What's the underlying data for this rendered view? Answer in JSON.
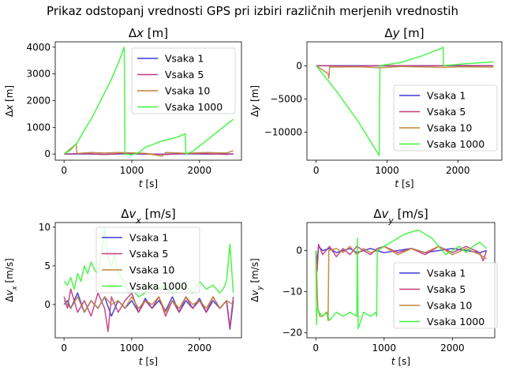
{
  "figure": {
    "suptitle": "Prikaz odstopanj vrednosti GPS pri izbiri različnih merjenih vrednostih"
  },
  "series_colors": [
    "#3a3ad6",
    "#c13a7e",
    "#c0823c",
    "#3cf53c"
  ],
  "chart_data": [
    {
      "type": "line",
      "title_base": "Δx",
      "title_sub": "",
      "title_unit": "[m]",
      "xlabel": "t",
      "xunit": "[s]",
      "ylabel_base": "Δx",
      "ylabel_sub": "",
      "ylabel_unit": "[m]",
      "xlim": [
        -130,
        2620
      ],
      "ylim": [
        -230,
        4200
      ],
      "xticks": [
        0,
        1000,
        2000
      ],
      "yticks": [
        0,
        1000,
        2000,
        3000,
        4000
      ],
      "legend": "top-right",
      "series": [
        {
          "name": "Vsaka 1",
          "x": [
            0,
            300,
            600,
            900,
            1200,
            1500,
            1800,
            2100,
            2400,
            2500
          ],
          "y": [
            0,
            5,
            -10,
            8,
            0,
            -5,
            10,
            0,
            5,
            0
          ]
        },
        {
          "name": "Vsaka 5",
          "x": [
            0,
            300,
            600,
            900,
            1200,
            1500,
            1800,
            2100,
            2400,
            2500
          ],
          "y": [
            0,
            20,
            -15,
            30,
            10,
            -20,
            25,
            15,
            -10,
            10
          ]
        },
        {
          "name": "Vsaka 10",
          "x": [
            0,
            180,
            190,
            400,
            600,
            800,
            900,
            1200,
            1450,
            1500,
            1700,
            1800,
            2100,
            2400,
            2500
          ],
          "y": [
            0,
            380,
            20,
            60,
            40,
            60,
            50,
            30,
            -80,
            60,
            40,
            30,
            60,
            40,
            130
          ]
        },
        {
          "name": "Vsaka 1000",
          "x": [
            0,
            100,
            200,
            300,
            400,
            500,
            600,
            700,
            800,
            890,
            900,
            1000,
            1100,
            1200,
            1300,
            1400,
            1500,
            1600,
            1700,
            1790,
            1800,
            1900,
            2000,
            2100,
            2200,
            2300,
            2400,
            2500
          ],
          "y": [
            0,
            150,
            450,
            900,
            1300,
            1800,
            2300,
            2800,
            3400,
            4000,
            0,
            -30,
            50,
            250,
            350,
            450,
            520,
            580,
            660,
            760,
            0,
            100,
            300,
            500,
            700,
            900,
            1100,
            1300
          ]
        }
      ]
    },
    {
      "type": "line",
      "title_base": "Δy",
      "title_sub": "",
      "title_unit": "[m]",
      "xlabel": "t",
      "xunit": "[s]",
      "ylabel_base": "Δy",
      "ylabel_sub": "",
      "ylabel_unit": "[m]",
      "xlim": [
        -130,
        2620
      ],
      "ylim": [
        -14200,
        3600
      ],
      "xticks": [
        0,
        1000,
        2000
      ],
      "yticks": [
        -10000,
        -5000,
        0
      ],
      "legend": "bottom-right",
      "series": [
        {
          "name": "Vsaka 1",
          "x": [
            0,
            500,
            1000,
            1500,
            2000,
            2500
          ],
          "y": [
            0,
            10,
            -10,
            5,
            0,
            10
          ]
        },
        {
          "name": "Vsaka 5",
          "x": [
            0,
            500,
            1000,
            1500,
            2000,
            2500
          ],
          "y": [
            0,
            -50,
            30,
            -20,
            40,
            0
          ]
        },
        {
          "name": "Vsaka 10",
          "x": [
            0,
            170,
            180,
            190,
            600,
            900,
            1200,
            1800,
            2100,
            2500
          ],
          "y": [
            0,
            -1200,
            -1900,
            -200,
            -150,
            -300,
            -100,
            -250,
            -150,
            -200
          ]
        },
        {
          "name": "Vsaka 1000",
          "x": [
            0,
            300,
            600,
            890,
            900,
            1200,
            1500,
            1780,
            1790,
            1800,
            2100,
            2400,
            2500
          ],
          "y": [
            0,
            -4000,
            -8500,
            -13500,
            0,
            500,
            1500,
            2700,
            2800,
            0,
            300,
            500,
            600
          ]
        }
      ]
    },
    {
      "type": "line",
      "title_base": "Δv",
      "title_sub": "x",
      "title_unit": "[m/s]",
      "xlabel": "t",
      "xunit": "[s]",
      "ylabel_base": "Δv",
      "ylabel_sub": "x",
      "ylabel_unit": "[m/s]",
      "xlim": [
        -130,
        2620
      ],
      "ylim": [
        -4.3,
        10.6
      ],
      "xticks": [
        0,
        1000,
        2000
      ],
      "yticks": [
        0,
        5,
        10
      ],
      "legend": "top-center",
      "series": [
        {
          "name": "Vsaka 1",
          "x": [
            0,
            50,
            100,
            200,
            300,
            400,
            500,
            600,
            700,
            800,
            900,
            1000,
            1100,
            1200,
            1300,
            1400,
            1500,
            1600,
            1700,
            1800,
            1900,
            2000,
            2100,
            2200,
            2300,
            2400,
            2450,
            2500
          ],
          "y": [
            0,
            0.5,
            -0.5,
            1.5,
            -1,
            0.5,
            -0.5,
            1,
            -1.5,
            0.5,
            -0.5,
            0.5,
            -1,
            0.8,
            -0.5,
            0.5,
            -0.8,
            1,
            -1,
            0.5,
            -0.5,
            0.8,
            -1,
            0.5,
            -0.5,
            0.5,
            -3.2,
            0.5
          ]
        },
        {
          "name": "Vsaka 5",
          "x": [
            0,
            50,
            100,
            200,
            300,
            400,
            500,
            600,
            650,
            700,
            800,
            900,
            1000,
            1100,
            1200,
            1300,
            1400,
            1500,
            1600,
            1700,
            1800,
            1900,
            2000,
            2100,
            2200,
            2300,
            2400,
            2450,
            2500
          ],
          "y": [
            1,
            -0.5,
            2,
            -1,
            0.5,
            -1.5,
            1.5,
            -0.5,
            -3.5,
            1,
            -1,
            0.5,
            1.5,
            -1,
            0.5,
            -0.5,
            1,
            -1.5,
            0.5,
            -1,
            1,
            -0.5,
            0.5,
            -1,
            1,
            -0.5,
            0.5,
            -3,
            1
          ]
        },
        {
          "name": "Vsaka 10",
          "x": [
            0,
            100,
            200,
            300,
            400,
            500,
            600,
            700,
            800,
            900,
            1000,
            1100,
            1200,
            1300,
            1400,
            1500,
            1600,
            1700,
            1800,
            1900,
            2000,
            2100,
            2200,
            2300,
            2400,
            2500
          ],
          "y": [
            0.5,
            -0.5,
            1,
            -1,
            0.5,
            -0.5,
            1,
            0,
            0.5,
            -0.5,
            1,
            -0.5,
            0.5,
            0,
            1,
            -1,
            0.5,
            -0.5,
            1,
            0,
            0.5,
            -0.5,
            1,
            -0.5,
            0.5,
            0
          ]
        },
        {
          "name": "Vsaka 1000",
          "x": [
            0,
            50,
            100,
            150,
            200,
            250,
            300,
            350,
            400,
            450,
            500,
            550,
            600,
            650,
            700,
            750,
            800,
            850,
            900,
            950,
            1000,
            1100,
            1200,
            1300,
            1400,
            1500,
            1600,
            1700,
            1800,
            1900,
            2000,
            2100,
            2200,
            2300,
            2350,
            2400,
            2450,
            2500
          ],
          "y": [
            3,
            2.5,
            3.5,
            2,
            4,
            3,
            5,
            4,
            5.5,
            4.5,
            4,
            6.5,
            9.8,
            6,
            5,
            6.5,
            4,
            3.5,
            2.5,
            1.5,
            2,
            1,
            1.5,
            2.5,
            2,
            2.5,
            1.5,
            2,
            2.5,
            1.5,
            3,
            2,
            2.5,
            1.5,
            2,
            3,
            7.8,
            1.5
          ]
        }
      ]
    },
    {
      "type": "line",
      "title_base": "Δv",
      "title_sub": "y",
      "title_unit": "[m/s]",
      "xlabel": "t",
      "xunit": "[s]",
      "ylabel_base": "Δv",
      "ylabel_sub": "y",
      "ylabel_unit": "[m/s]",
      "xlim": [
        -130,
        2620
      ],
      "ylim": [
        -21.2,
        6.8
      ],
      "xticks": [
        0,
        1000,
        2000
      ],
      "yticks": [
        -20,
        -10,
        0
      ],
      "legend": "bottom-right",
      "series": [
        {
          "name": "Vsaka 1",
          "x": [
            0,
            20,
            40,
            100,
            200,
            300,
            400,
            500,
            600,
            700,
            800,
            900,
            1000,
            1200,
            1400,
            1600,
            1800,
            2000,
            2200,
            2400,
            2500
          ],
          "y": [
            0,
            -3,
            1,
            0,
            0.5,
            -0.5,
            0,
            0.5,
            -0.5,
            0,
            0.5,
            0,
            -0.5,
            0,
            0.5,
            -0.5,
            0,
            0.5,
            0,
            -0.5,
            0
          ]
        },
        {
          "name": "Vsaka 5",
          "x": [
            0,
            20,
            40,
            100,
            200,
            300,
            400,
            500,
            600,
            700,
            800,
            900,
            1000,
            1200,
            1400,
            1600,
            1800,
            2000,
            2200,
            2400,
            2450,
            2500
          ],
          "y": [
            0,
            -5,
            1.5,
            -1,
            1,
            -1.5,
            0.5,
            -1,
            1,
            0,
            -1,
            0.5,
            1,
            -0.5,
            0.5,
            -1,
            1,
            -0.5,
            1,
            -0.5,
            -2.5,
            0
          ]
        },
        {
          "name": "Vsaka 10",
          "x": [
            0,
            30,
            60,
            100,
            160,
            180,
            190,
            300,
            400,
            500,
            600,
            700,
            800,
            900,
            1000,
            1200,
            1400,
            1600,
            1800,
            2000,
            2200,
            2400,
            2500
          ],
          "y": [
            0,
            -14,
            -16,
            -16,
            -15,
            -17,
            0,
            0.5,
            -0.5,
            1,
            -1,
            0.5,
            -0.5,
            0,
            1,
            -1,
            0.5,
            -0.5,
            1,
            -1,
            0.5,
            -1,
            -2
          ]
        },
        {
          "name": "Vsaka 1000",
          "x": [
            0,
            10,
            20,
            50,
            100,
            150,
            200,
            300,
            400,
            500,
            600,
            610,
            620,
            700,
            800,
            880,
            890,
            900,
            1000,
            1100,
            1200,
            1300,
            1400,
            1500,
            1600,
            1700,
            1800,
            1900,
            2000,
            2100,
            2200,
            2300,
            2400,
            2500
          ],
          "y": [
            0,
            -18,
            -14,
            -15,
            -16,
            -15,
            -17,
            -15,
            -16,
            -15,
            -16,
            3,
            -19,
            -15,
            -16,
            -15,
            -16,
            0,
            1,
            2,
            3,
            4,
            4.5,
            5,
            4,
            3,
            1,
            -1,
            0,
            1,
            -0.5,
            1,
            2,
            0.5
          ]
        }
      ]
    }
  ]
}
